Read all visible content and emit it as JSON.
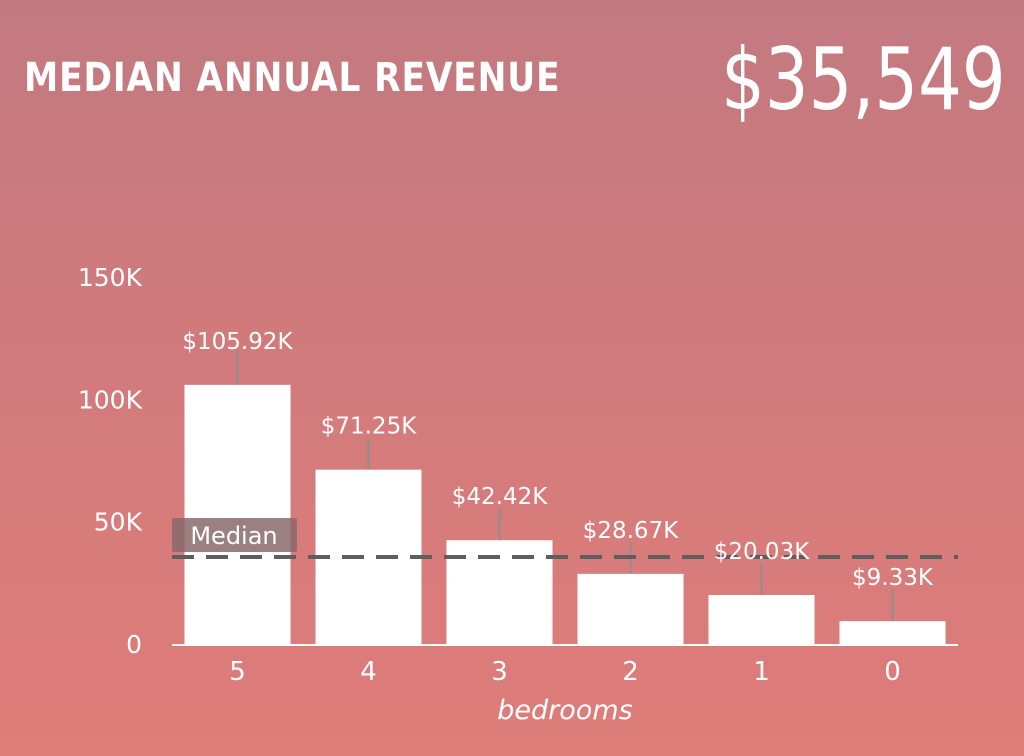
{
  "header": {
    "title": "MEDIAN ANNUAL REVENUE",
    "value": "$35,549"
  },
  "colors": {
    "bar": "#ffffff",
    "median_line": "#5e5e5e",
    "median_label_bg": "#8a6a6c",
    "leader": "#8e8e8e",
    "text": "#ffffff"
  },
  "chart_data": {
    "type": "bar",
    "categories": [
      "5",
      "4",
      "3",
      "2",
      "1",
      "0"
    ],
    "values": [
      105920,
      71250,
      42420,
      28670,
      20030,
      9330
    ],
    "data_labels": [
      "$105.92K",
      "$71.25K",
      "$42.42K",
      "$28.67K",
      "$20.03K",
      "$9.33K"
    ],
    "xlabel": "bedrooms",
    "ylabel": "",
    "ylim": [
      0,
      150000
    ],
    "y_ticks": [
      0,
      50000,
      100000,
      150000
    ],
    "y_tick_labels": [
      "0",
      "50K",
      "100K",
      "150K"
    ],
    "reference_line": {
      "label": "Median",
      "value": 35549,
      "style": "dashed"
    },
    "grid": false,
    "legend": "none"
  }
}
